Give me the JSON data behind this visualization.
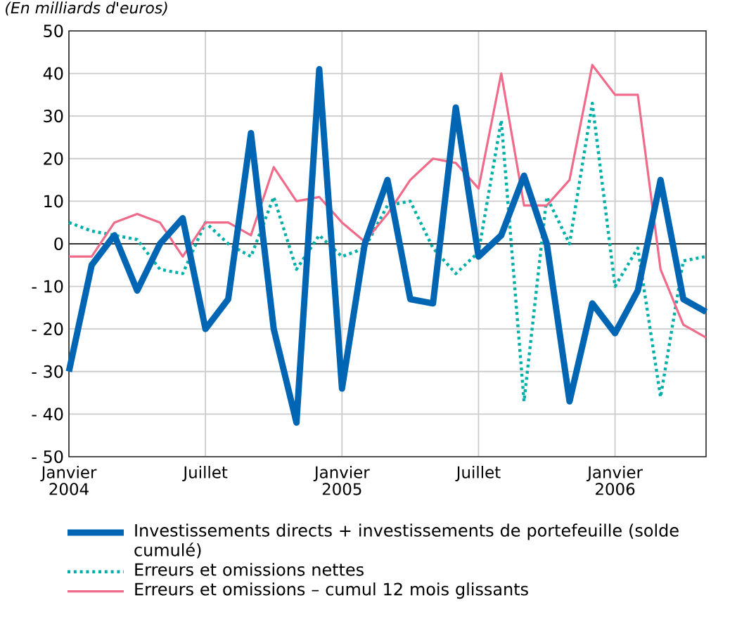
{
  "chart_data": {
    "type": "line",
    "subtitle": "(En milliards d'euros)",
    "categories": [
      "Janvier 2004",
      null,
      null,
      null,
      null,
      null,
      "Juillet",
      null,
      null,
      null,
      null,
      null,
      "Janvier 2005",
      null,
      null,
      null,
      null,
      null,
      "Juillet",
      null,
      null,
      null,
      null,
      null,
      "Janvier 2006",
      null,
      null,
      null,
      null
    ],
    "ylim": [
      -50,
      50
    ],
    "yticks": [
      {
        "value": -50,
        "label": "- 50"
      },
      {
        "value": -40,
        "label": "- 40"
      },
      {
        "value": -30,
        "label": "- 30"
      },
      {
        "value": -20,
        "label": "- 20"
      },
      {
        "value": -10,
        "label": "- 10"
      },
      0,
      10,
      20,
      30,
      40,
      50
    ],
    "grid": true,
    "legend": "bottom",
    "ref_lines": [
      {
        "axis": "y",
        "value": 0,
        "color": "#333333"
      }
    ],
    "series": [
      {
        "name": "Investissements directs + investissements de portefeuille (solde cumulé)",
        "color": "#0066b3",
        "line_style": "solid",
        "values": [
          -30,
          -5,
          2,
          -11,
          0,
          6,
          -20,
          -13,
          26,
          -20,
          -42,
          41,
          -34,
          0,
          15,
          -13,
          -14,
          32,
          -3,
          2,
          16,
          0,
          -37,
          -14,
          -21,
          -11,
          15,
          -13,
          -16
        ]
      },
      {
        "name": "Erreurs et omissions nettes",
        "color": "#00b0a8",
        "line_style": "dotted",
        "values": [
          5,
          3,
          2,
          1,
          -6,
          -7,
          5,
          0,
          -3,
          11,
          -6,
          2,
          -3,
          -1,
          9,
          10,
          -1,
          -7,
          -2,
          29,
          -37,
          11,
          0,
          33,
          -10,
          -1,
          -36,
          -4,
          -3
        ]
      },
      {
        "name": "Erreurs et omissions – cumul 12 mois glissants",
        "color": "#f06a8a",
        "line_style": "solid",
        "values": [
          -3,
          -3,
          5,
          7,
          5,
          -3,
          5,
          5,
          2,
          18,
          10,
          11,
          5,
          0.5,
          7,
          15,
          20,
          19,
          13,
          40,
          9,
          9,
          15,
          42,
          35,
          35,
          -6,
          -19,
          -22
        ]
      }
    ]
  }
}
